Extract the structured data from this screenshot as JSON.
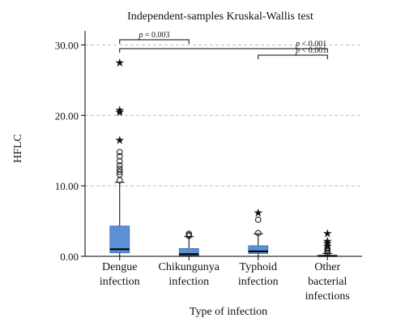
{
  "chart_data": {
    "type": "box",
    "title": "Independent-samples Kruskal-Wallis test",
    "xlabel": "Type of infection",
    "ylabel": "HFLC",
    "ylim": [
      0,
      32
    ],
    "yticks": [
      0,
      10,
      20,
      30
    ],
    "ytick_labels": [
      "0.00",
      "10.00",
      "20.00",
      "30.00"
    ],
    "grid": "horizontal dashed at major ticks",
    "box_color": "#5b8fd6",
    "categories": [
      [
        "Dengue",
        "infection"
      ],
      [
        "Chikungunya",
        "infection"
      ],
      [
        "Typhoid",
        "infection"
      ],
      [
        "Other",
        "bacterial",
        "infections"
      ]
    ],
    "boxes": [
      {
        "min": 0.0,
        "q1": 0.5,
        "median": 1.0,
        "q3": 4.3,
        "max": 10.5,
        "outliers": [
          10.8,
          11.6,
          12.0,
          12.4,
          12.9,
          13.5,
          14.2,
          14.8
        ],
        "extremes": [
          16.5,
          20.5,
          20.8,
          27.5
        ]
      },
      {
        "min": 0.0,
        "q1": 0.1,
        "median": 0.3,
        "q3": 1.1,
        "max": 2.8,
        "outliers": [
          2.9,
          3.0,
          3.2
        ],
        "extremes": []
      },
      {
        "min": 0.0,
        "q1": 0.4,
        "median": 0.7,
        "q3": 1.5,
        "max": 3.2,
        "outliers": [
          3.3,
          5.2
        ],
        "extremes": [
          6.2
        ]
      },
      {
        "min": 0.0,
        "q1": 0.0,
        "median": 0.05,
        "q3": 0.15,
        "max": 0.4,
        "outliers": [
          0.5,
          0.7,
          0.9,
          1.1
        ],
        "extremes": [
          1.5,
          1.9,
          2.2,
          3.3
        ]
      }
    ],
    "comparisons": [
      {
        "from": 0,
        "to": 1,
        "label_prefix": "p",
        "label_value": " = 0.003"
      },
      {
        "from": 0,
        "to": 3,
        "label_prefix": "p",
        "label_value": " < 0.001"
      },
      {
        "from": 2,
        "to": 3,
        "label_prefix": "p",
        "label_value": " < 0.001"
      }
    ]
  }
}
